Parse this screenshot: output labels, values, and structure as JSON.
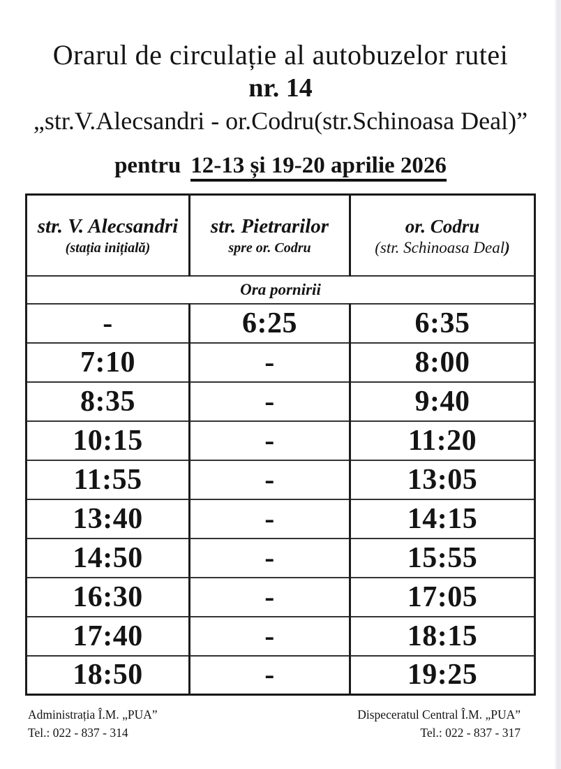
{
  "header": {
    "title_line1": "Orarul de circulație al autobuzelor rutei",
    "route_number": "nr. 14",
    "route_name": "„str.V.Alecsandri - or.Codru(str.Schinoasa Deal)”",
    "period_prefix": "pentru",
    "period_dates": "12-13 și 19-20 aprilie 2026"
  },
  "table": {
    "columns": [
      {
        "name": "str. V. Alecsandri",
        "sub": "(stația inițială)"
      },
      {
        "name": "str. Pietrarilor",
        "sub": "spre or. Codru"
      },
      {
        "name": "or. Codru",
        "sub_main": "(str. Schinoasa Deal",
        "sub_paren": ")"
      }
    ],
    "section_header": "Ora pornirii",
    "rows": [
      [
        "-",
        "6:25",
        "6:35"
      ],
      [
        "7:10",
        "-",
        "8:00"
      ],
      [
        "8:35",
        "-",
        "9:40"
      ],
      [
        "10:15",
        "-",
        "11:20"
      ],
      [
        "11:55",
        "-",
        "13:05"
      ],
      [
        "13:40",
        "-",
        "14:15"
      ],
      [
        "14:50",
        "-",
        "15:55"
      ],
      [
        "16:30",
        "-",
        "17:05"
      ],
      [
        "17:40",
        "-",
        "18:15"
      ],
      [
        "18:50",
        "-",
        "19:25"
      ]
    ]
  },
  "footer": {
    "left_org": "Administrația Î.M. „PUA”",
    "left_tel": "Tel.: 022 - 837 - 314",
    "right_org": "Dispeceratul Central Î.M. „PUA”",
    "right_tel": "Tel.: 022 - 837 - 317"
  }
}
